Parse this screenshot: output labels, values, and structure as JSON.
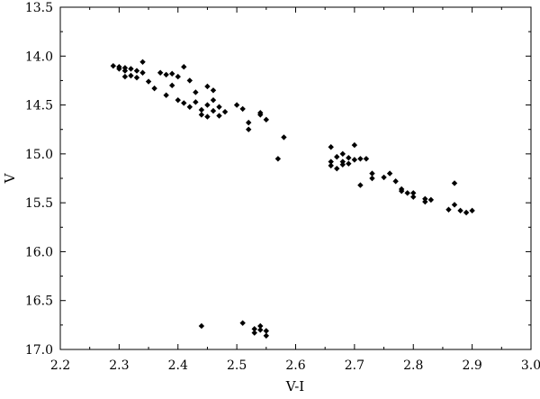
{
  "chart_data": {
    "type": "scatter",
    "xlabel": "V-I",
    "ylabel": "V",
    "xlim": [
      2.2,
      3.0
    ],
    "ylim": [
      17.0,
      13.5
    ],
    "y_inverted": true,
    "grid": false,
    "marker": "diamond",
    "marker_color": "#000000",
    "x_ticks": [
      "2.2",
      "2.3",
      "2.4",
      "2.5",
      "2.6",
      "2.7",
      "2.8",
      "2.9",
      "3.0"
    ],
    "y_ticks": [
      "13.5",
      "14.0",
      "14.5",
      "15.0",
      "15.5",
      "16.0",
      "16.5",
      "17.0"
    ],
    "points": [
      {
        "x": 2.29,
        "y": 14.1
      },
      {
        "x": 2.3,
        "y": 14.11
      },
      {
        "x": 2.3,
        "y": 14.13
      },
      {
        "x": 2.31,
        "y": 14.12
      },
      {
        "x": 2.31,
        "y": 14.15
      },
      {
        "x": 2.32,
        "y": 14.13
      },
      {
        "x": 2.32,
        "y": 14.2
      },
      {
        "x": 2.33,
        "y": 14.15
      },
      {
        "x": 2.33,
        "y": 14.22
      },
      {
        "x": 2.34,
        "y": 14.06
      },
      {
        "x": 2.34,
        "y": 14.17
      },
      {
        "x": 2.31,
        "y": 14.21
      },
      {
        "x": 2.35,
        "y": 14.26
      },
      {
        "x": 2.36,
        "y": 14.33
      },
      {
        "x": 2.37,
        "y": 14.17
      },
      {
        "x": 2.38,
        "y": 14.19
      },
      {
        "x": 2.38,
        "y": 14.4
      },
      {
        "x": 2.39,
        "y": 14.18
      },
      {
        "x": 2.39,
        "y": 14.3
      },
      {
        "x": 2.4,
        "y": 14.21
      },
      {
        "x": 2.4,
        "y": 14.45
      },
      {
        "x": 2.41,
        "y": 14.11
      },
      {
        "x": 2.41,
        "y": 14.48
      },
      {
        "x": 2.42,
        "y": 14.25
      },
      {
        "x": 2.42,
        "y": 14.52
      },
      {
        "x": 2.43,
        "y": 14.37
      },
      {
        "x": 2.43,
        "y": 14.47
      },
      {
        "x": 2.44,
        "y": 14.55
      },
      {
        "x": 2.44,
        "y": 14.6
      },
      {
        "x": 2.45,
        "y": 14.31
      },
      {
        "x": 2.45,
        "y": 14.5
      },
      {
        "x": 2.45,
        "y": 14.62
      },
      {
        "x": 2.46,
        "y": 14.35
      },
      {
        "x": 2.46,
        "y": 14.45
      },
      {
        "x": 2.46,
        "y": 14.56
      },
      {
        "x": 2.47,
        "y": 14.52
      },
      {
        "x": 2.47,
        "y": 14.61
      },
      {
        "x": 2.48,
        "y": 14.57
      },
      {
        "x": 2.5,
        "y": 14.5
      },
      {
        "x": 2.51,
        "y": 14.54
      },
      {
        "x": 2.52,
        "y": 14.68
      },
      {
        "x": 2.52,
        "y": 14.75
      },
      {
        "x": 2.54,
        "y": 14.58
      },
      {
        "x": 2.54,
        "y": 14.6
      },
      {
        "x": 2.55,
        "y": 14.65
      },
      {
        "x": 2.57,
        "y": 15.05
      },
      {
        "x": 2.58,
        "y": 14.83
      },
      {
        "x": 2.66,
        "y": 14.93
      },
      {
        "x": 2.66,
        "y": 15.08
      },
      {
        "x": 2.66,
        "y": 15.12
      },
      {
        "x": 2.67,
        "y": 15.03
      },
      {
        "x": 2.67,
        "y": 15.15
      },
      {
        "x": 2.68,
        "y": 15.0
      },
      {
        "x": 2.68,
        "y": 15.08
      },
      {
        "x": 2.68,
        "y": 15.11
      },
      {
        "x": 2.69,
        "y": 15.04
      },
      {
        "x": 2.69,
        "y": 15.1
      },
      {
        "x": 2.7,
        "y": 15.06
      },
      {
        "x": 2.7,
        "y": 14.91
      },
      {
        "x": 2.71,
        "y": 15.05
      },
      {
        "x": 2.71,
        "y": 15.32
      },
      {
        "x": 2.72,
        "y": 15.05
      },
      {
        "x": 2.73,
        "y": 15.2
      },
      {
        "x": 2.73,
        "y": 15.25
      },
      {
        "x": 2.75,
        "y": 15.24
      },
      {
        "x": 2.76,
        "y": 15.2
      },
      {
        "x": 2.77,
        "y": 15.28
      },
      {
        "x": 2.78,
        "y": 15.36
      },
      {
        "x": 2.78,
        "y": 15.38
      },
      {
        "x": 2.79,
        "y": 15.4
      },
      {
        "x": 2.8,
        "y": 15.4
      },
      {
        "x": 2.8,
        "y": 15.44
      },
      {
        "x": 2.82,
        "y": 15.46
      },
      {
        "x": 2.82,
        "y": 15.49
      },
      {
        "x": 2.83,
        "y": 15.47
      },
      {
        "x": 2.86,
        "y": 15.57
      },
      {
        "x": 2.87,
        "y": 15.52
      },
      {
        "x": 2.87,
        "y": 15.3
      },
      {
        "x": 2.88,
        "y": 15.58
      },
      {
        "x": 2.89,
        "y": 15.6
      },
      {
        "x": 2.9,
        "y": 15.58
      },
      {
        "x": 2.44,
        "y": 16.76
      },
      {
        "x": 2.51,
        "y": 16.73
      },
      {
        "x": 2.53,
        "y": 16.79
      },
      {
        "x": 2.53,
        "y": 16.83
      },
      {
        "x": 2.54,
        "y": 16.76
      },
      {
        "x": 2.54,
        "y": 16.8
      },
      {
        "x": 2.55,
        "y": 16.81
      },
      {
        "x": 2.55,
        "y": 16.86
      }
    ]
  }
}
